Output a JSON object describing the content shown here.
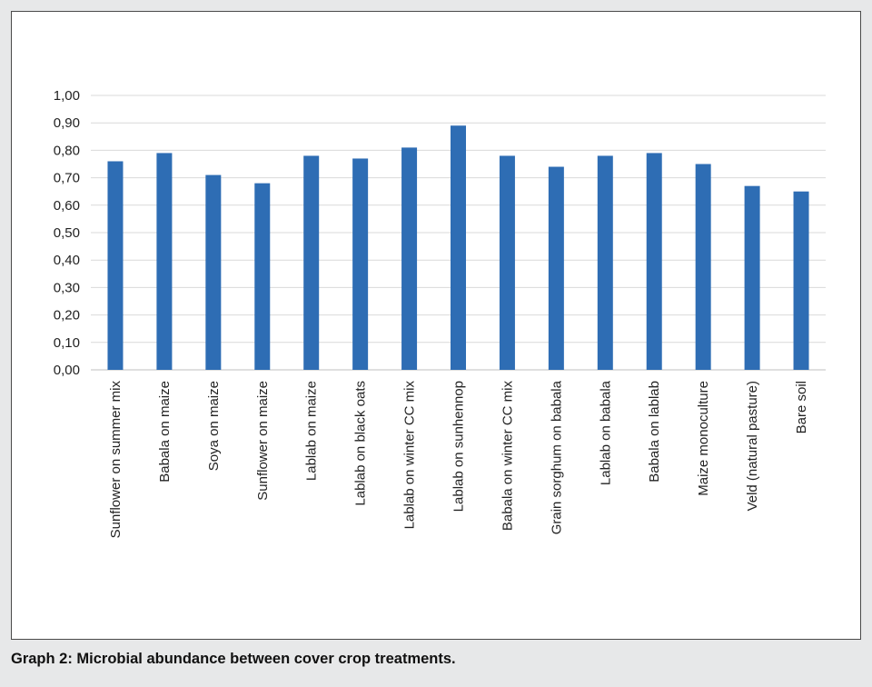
{
  "caption": "Graph 2: Microbial abundance between cover crop treatments.",
  "colors": {
    "bar": "#2e6db4",
    "grid": "#d9d9d9",
    "axis": "#bfbfbf",
    "background": "#e7e8e9"
  },
  "chart_data": {
    "type": "bar",
    "title": "",
    "xlabel": "",
    "ylabel": "",
    "ylim": [
      0,
      1.0
    ],
    "ytick_step": 0.1,
    "ytick_labels": [
      "0,00",
      "0,10",
      "0,20",
      "0,30",
      "0,40",
      "0,50",
      "0,60",
      "0,70",
      "0,80",
      "0,90",
      "1,00"
    ],
    "grid": true,
    "legend": "none",
    "categories": [
      "Sunflower on summer mix",
      "Babala on maize",
      "Soya on maize",
      "Sunflower on maize",
      "Lablab on maize",
      "Lablab on black oats",
      "Lablab on  winter CC mix",
      "Lablab on sunhennop",
      "Babala on  winter CC mix",
      "Grain sorghum on babala",
      "Lablab on babala",
      "Babala on lablab",
      "Maize monoculture",
      "Veld (natural pasture)",
      "Bare soil"
    ],
    "values": [
      0.76,
      0.79,
      0.71,
      0.68,
      0.78,
      0.77,
      0.81,
      0.89,
      0.78,
      0.74,
      0.78,
      0.79,
      0.75,
      0.67,
      0.65
    ]
  }
}
